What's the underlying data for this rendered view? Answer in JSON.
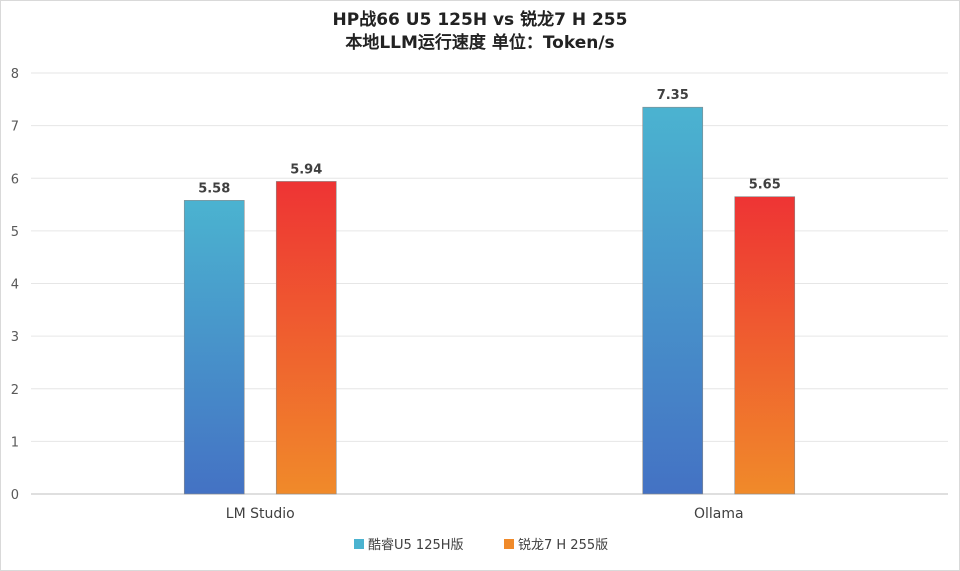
{
  "chart_data": {
    "type": "bar",
    "title": "HP战66 U5 125H vs 锐龙7 H 255",
    "subtitle": "本地LLM运行速度 单位：Token/s",
    "categories": [
      "LM Studio",
      "Ollama"
    ],
    "series": [
      {
        "name": "酷睿U5 125H版",
        "values": [
          5.58,
          7.35
        ],
        "colors": [
          "#4472c4",
          "#4bb3d0"
        ]
      },
      {
        "name": "锐龙7 H 255版",
        "values": [
          5.94,
          5.65
        ],
        "colors": [
          "#f08a2a",
          "#ee3434"
        ]
      }
    ],
    "ylim": [
      0,
      8
    ],
    "yticks": [
      0,
      1,
      2,
      3,
      4,
      5,
      6,
      7,
      8
    ],
    "grid": true,
    "legend": "bottom",
    "xlabel": "",
    "ylabel": ""
  }
}
